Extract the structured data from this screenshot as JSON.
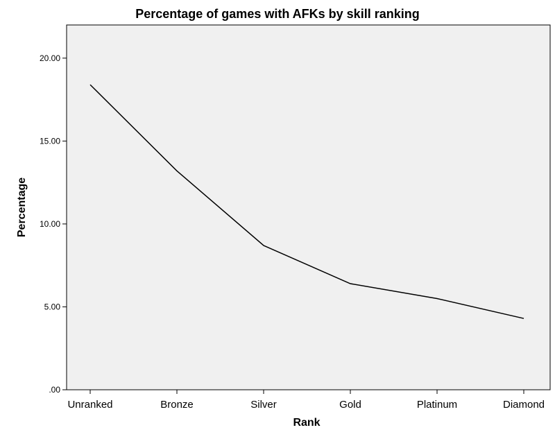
{
  "chart_data": {
    "type": "line",
    "title": "Percentage of games with AFKs by skill ranking",
    "xlabel": "Rank",
    "ylabel": "Percentage",
    "categories": [
      "Unranked",
      "Bronze",
      "Silver",
      "Gold",
      "Platinum",
      "Diamond"
    ],
    "values": [
      18.4,
      13.2,
      8.7,
      6.4,
      5.5,
      4.3
    ],
    "ylim": [
      0,
      22
    ],
    "yticks": [
      0,
      5,
      10,
      15,
      20
    ],
    "ytick_labels": [
      ".00",
      "5.00",
      "10.00",
      "15.00",
      "20.00"
    ],
    "grid": false,
    "legend": "none",
    "colors": {
      "line": "#000000",
      "plot_background": "#f0f0f0",
      "page_background": "#ffffff"
    }
  }
}
